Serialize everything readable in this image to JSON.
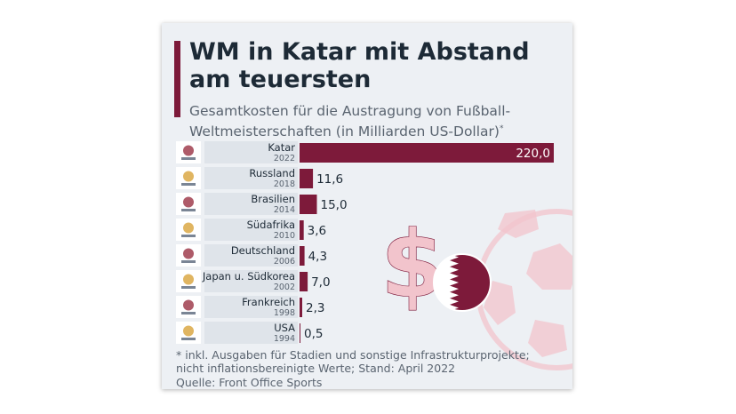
{
  "header": {
    "title": "WM in Katar mit Abstand am teuersten",
    "subtitle": "Gesamtkosten für die Austragung von Fußball-Weltmeisterschaften (in Milliarden US-Dollar)",
    "subtitle_marker": "*"
  },
  "chart_data": {
    "type": "bar",
    "orientation": "horizontal",
    "categories": [
      "Katar",
      "Russland",
      "Brasilien",
      "Südafrika",
      "Deutschland",
      "Japan u. Südkorea",
      "Frankreich",
      "USA"
    ],
    "years": [
      "2022",
      "2018",
      "2014",
      "2010",
      "2006",
      "2002",
      "1998",
      "1994"
    ],
    "values": [
      220.0,
      11.6,
      15.0,
      3.6,
      4.3,
      7.0,
      2.3,
      0.5
    ],
    "value_labels": [
      "220,0",
      "11,6",
      "15,0",
      "3,6",
      "4,3",
      "7,0",
      "2,3",
      "0,5"
    ],
    "xlim": [
      0,
      220
    ],
    "grid": false,
    "legend": "none"
  },
  "footer": {
    "footnote": "* inkl. Ausgaben für Stadien und sonstige Infrastrukturprojekte; nicht inflationsbereinigte Werte; Stand: April 2022",
    "source": "Quelle: Front Office Sports"
  },
  "colors": {
    "bar": "#7d1a3a",
    "accent": "#7d1a3a",
    "text_dark": "#1d2a36",
    "text_muted": "#5a6470",
    "label_bg": "#dfe4ea",
    "logo_bg": "#ffffff",
    "decor_pink": "#f2c4cc"
  },
  "icons": [
    "world-cup-logo-icon",
    "dollar-sign-icon",
    "qatar-flag-icon",
    "soccer-ball-icon"
  ]
}
